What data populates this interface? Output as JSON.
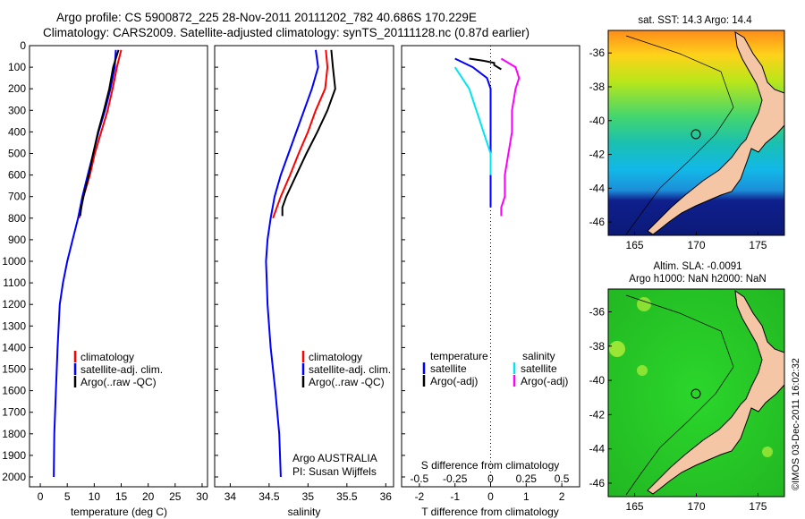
{
  "header": {
    "line1": "Argo profile: CS 5900872_225 28-Nov-2011 20111202_782 40.686S 170.229E",
    "line2": "Climatology: CARS2009. Satellite-adjusted climatology: synTS_20111128.nc (0.87d earlier)"
  },
  "depth_ticks": [
    "0",
    "100",
    "200",
    "300",
    "400",
    "500",
    "600",
    "700",
    "800",
    "900",
    "1000",
    "1100",
    "1200",
    "1300",
    "1400",
    "1500",
    "1600",
    "1700",
    "1800",
    "1900",
    "2000"
  ],
  "colors": {
    "climatology": "#ff0000",
    "satellite": "#0000ff",
    "argo": "#000000",
    "satellite_s": "#00e5ee",
    "argo_s": "#ff00ff",
    "land": "#f5c6a5"
  },
  "panels": {
    "temperature": {
      "xlabel": "temperature (deg C)",
      "ticks": [
        "0",
        "5",
        "10",
        "15",
        "20",
        "25",
        "30"
      ],
      "legend": [
        "climatology",
        "satellite-adj. clim.",
        "Argo(..raw -QC)"
      ]
    },
    "salinity": {
      "xlabel": "salinity",
      "ticks": [
        "34",
        "34.5",
        "35",
        "35.5",
        "36"
      ],
      "legend": [
        "climatology",
        "satellite-adj. clim.",
        "Argo(..raw -QC)"
      ],
      "credit1": "Argo AUSTRALIA",
      "credit2": "PI: Susan Wijffels"
    },
    "difference": {
      "xlabel_bottom": "T difference from climatology",
      "xlabel_top": "S difference from climatology",
      "ticks_T": [
        "-2",
        "-1",
        "0",
        "1",
        "2"
      ],
      "ticks_S": [
        "-0.5",
        "-0.25",
        "0",
        "0.25",
        "0.5"
      ],
      "legend_head_T": "temperature",
      "legend_head_S": "salinity",
      "legend_T": [
        "satellite",
        "Argo(-adj)"
      ],
      "legend_S": [
        "satellite",
        "Argo(-adj)"
      ]
    },
    "sst_map": {
      "title": "sat. SST: 14.3 Argo: 14.4",
      "lat_ticks": [
        "-36",
        "-38",
        "-40",
        "-42",
        "-44",
        "-46"
      ],
      "lon_ticks": [
        "165",
        "170",
        "175"
      ]
    },
    "sla_map": {
      "title1": "Altim. SLA: -0.0091",
      "title2": "Argo h1000: NaN h2000: NaN",
      "lat_ticks": [
        "-36",
        "-38",
        "-40",
        "-42",
        "-44",
        "-46"
      ],
      "lon_ticks": [
        "165",
        "170",
        "175"
      ]
    }
  },
  "stamp": "©IMOS 03-Dec-2011 16:02:32",
  "chart_data": [
    {
      "type": "line",
      "title": "",
      "xlabel": "temperature (deg C)",
      "ylabel": "",
      "xlim": [
        -2,
        31
      ],
      "ylim": [
        0,
        2050
      ],
      "y_reversed": true,
      "series": [
        {
          "name": "climatology",
          "x": [
            15,
            14.2,
            13.4,
            12.5,
            11.3,
            10.1,
            9.2,
            8.0,
            7.2
          ],
          "y": [
            20,
            100,
            200,
            300,
            400,
            500,
            600,
            700,
            800
          ]
        },
        {
          "name": "satellite-adj. clim.",
          "x": [
            14.0,
            13.8,
            13.0,
            12.0,
            10.8,
            9.8,
            8.8,
            7.8,
            7.0,
            6.0,
            5.0,
            4.2,
            3.6,
            3.2,
            2.9,
            2.6,
            2.5
          ],
          "y": [
            20,
            100,
            200,
            300,
            400,
            500,
            600,
            700,
            800,
            900,
            1000,
            1100,
            1200,
            1400,
            1600,
            1800,
            2000
          ]
        },
        {
          "name": "Argo(..raw -QC)",
          "x": [
            14.5,
            13.5,
            12.8,
            11.8,
            10.7,
            9.8,
            9.0,
            8.0,
            7.6,
            7.4
          ],
          "y": [
            20,
            100,
            200,
            300,
            400,
            500,
            600,
            700,
            750,
            790
          ]
        }
      ]
    },
    {
      "type": "line",
      "title": "",
      "xlabel": "salinity",
      "ylabel": "",
      "xlim": [
        33.8,
        36.1
      ],
      "ylim": [
        0,
        2050
      ],
      "y_reversed": true,
      "series": [
        {
          "name": "climatology",
          "x": [
            35.23,
            35.25,
            35.22,
            35.1,
            35.0,
            34.88,
            34.77,
            34.65,
            34.55
          ],
          "y": [
            20,
            100,
            200,
            300,
            400,
            500,
            600,
            700,
            800
          ]
        },
        {
          "name": "satellite-adj. clim.",
          "x": [
            35.1,
            35.13,
            35.05,
            34.95,
            34.85,
            34.75,
            34.65,
            34.57,
            34.52,
            34.48,
            34.46,
            34.47,
            34.48,
            34.52,
            34.58,
            34.63,
            34.65
          ],
          "y": [
            20,
            100,
            200,
            300,
            400,
            500,
            600,
            700,
            800,
            900,
            1000,
            1100,
            1200,
            1400,
            1600,
            1800,
            2000
          ]
        },
        {
          "name": "Argo(..raw -QC)",
          "x": [
            35.3,
            35.32,
            35.35,
            35.25,
            35.12,
            34.98,
            34.85,
            34.72,
            34.67,
            34.67
          ],
          "y": [
            20,
            100,
            200,
            300,
            400,
            500,
            600,
            700,
            750,
            790
          ]
        }
      ]
    },
    {
      "type": "line",
      "title": "",
      "xlabel": "T difference from climatology",
      "ylabel": "",
      "xlim": [
        -2.5,
        2.5
      ],
      "ylim": [
        0,
        2050
      ],
      "y_reversed": true,
      "series": [
        {
          "name": "temperature satellite",
          "x": [
            -1.0,
            -0.5,
            -0.1,
            0.0,
            0.0,
            0.0,
            0.0,
            0.0,
            0.0,
            0.0
          ],
          "y": [
            60,
            100,
            150,
            200,
            300,
            400,
            500,
            600,
            700,
            750
          ]
        },
        {
          "name": "temperature Argo(-adj)",
          "x": [
            -0.6,
            -0.2,
            0.1,
            0.1,
            0.2,
            0.3
          ],
          "y": [
            60,
            70,
            80,
            90,
            100,
            110
          ]
        },
        {
          "name": "salinity satellite",
          "x": [
            -1.0,
            -0.8,
            -0.6,
            -0.5,
            -0.4,
            -0.3,
            -0.2,
            -0.1,
            0.0,
            0.0
          ],
          "y": [
            100,
            150,
            200,
            250,
            300,
            350,
            400,
            450,
            500,
            600
          ]
        },
        {
          "name": "salinity Argo(-adj)",
          "x": [
            0.3,
            0.7,
            0.8,
            0.7,
            0.6,
            0.6,
            0.5,
            0.4,
            0.4,
            0.3,
            0.3
          ],
          "y": [
            60,
            100,
            150,
            200,
            300,
            400,
            500,
            600,
            700,
            750,
            790
          ]
        }
      ]
    }
  ]
}
